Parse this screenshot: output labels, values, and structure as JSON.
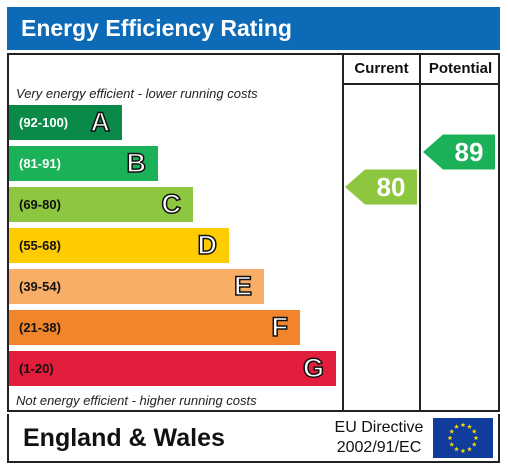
{
  "header": {
    "title": "Energy Efficiency Rating"
  },
  "columns": {
    "current": "Current",
    "potential": "Potential"
  },
  "notes": {
    "top": "Very energy efficient - lower running costs",
    "bottom": "Not energy efficient - higher running costs"
  },
  "footer": {
    "region": "England & Wales",
    "directive_line1": "EU Directive",
    "directive_line2": "2002/91/EC",
    "flag_icon": "eu-flag-icon"
  },
  "chart_data": {
    "type": "bar",
    "title": "Energy Efficiency Rating",
    "bands": [
      {
        "letter": "A",
        "range": "(92-100)",
        "color": "#0a8a48",
        "light": true
      },
      {
        "letter": "B",
        "range": "(81-91)",
        "color": "#1bb158",
        "light": true
      },
      {
        "letter": "C",
        "range": "(69-80)",
        "color": "#8dc63f",
        "light": false
      },
      {
        "letter": "D",
        "range": "(55-68)",
        "color": "#ffcc00",
        "light": false
      },
      {
        "letter": "E",
        "range": "(39-54)",
        "color": "#f8ae66",
        "light": false
      },
      {
        "letter": "F",
        "range": "(21-38)",
        "color": "#f0852c",
        "light": false
      },
      {
        "letter": "G",
        "range": "(1-20)",
        "color": "#e31d3c",
        "light": false
      }
    ],
    "current": {
      "value": 80,
      "label": "80",
      "band": "C",
      "color": "#8dc63f"
    },
    "potential": {
      "value": 89,
      "label": "89",
      "band": "B",
      "color": "#1bb158"
    }
  }
}
